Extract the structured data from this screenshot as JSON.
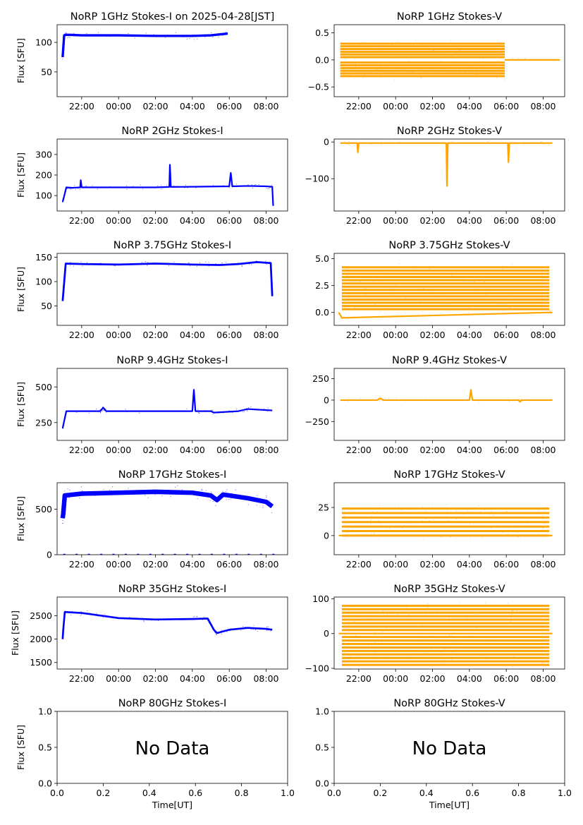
{
  "figure": {
    "xlabel_bottom": "Time[UT]",
    "ylabel": "Flux [SFU]",
    "time_ticks": [
      "22:00",
      "00:00",
      "02:00",
      "04:00",
      "06:00",
      "08:00"
    ],
    "colors": {
      "stokes_i": "#0000ff",
      "stokes_v": "#ffa500",
      "axis": "#000000",
      "background": "#ffffff"
    }
  },
  "chart_data": [
    {
      "type": "scatter",
      "title": "NoRP 1GHz Stokes-I on 2025-04-28[JST]",
      "ylabel": "Flux [SFU]",
      "xlim": [
        "20:40",
        "09:10"
      ],
      "ylim": [
        8,
        130
      ],
      "yticks": [
        50,
        100
      ],
      "color": "#0000ff",
      "series": [
        {
          "x": [
            "20:58",
            "21:00",
            "21:03",
            "21:10",
            "22:00",
            "00:00",
            "02:00",
            "04:00",
            "05:00",
            "05:55"
          ],
          "values": [
            75,
            90,
            112,
            113,
            112,
            112,
            111,
            111,
            112,
            115
          ],
          "spread": 2
        }
      ]
    },
    {
      "type": "scatter",
      "title": "NoRP 1GHz Stokes-V",
      "ylabel": "",
      "xlim": [
        "20:40",
        "09:10"
      ],
      "ylim": [
        -0.68,
        0.65
      ],
      "yticks": [
        -0.5,
        0.0,
        0.5
      ],
      "color": "#ffa500",
      "bands": {
        "x_start": "21:00",
        "x_end": "05:55",
        "levels": [
          -0.3,
          -0.25,
          -0.2,
          -0.15,
          -0.1,
          -0.05,
          0.05,
          0.1,
          0.15,
          0.2,
          0.25,
          0.3
        ]
      },
      "series": [
        {
          "x": [
            "05:55",
            "08:55"
          ],
          "values": [
            0,
            0
          ]
        }
      ]
    },
    {
      "type": "scatter",
      "title": "NoRP 2GHz Stokes-I",
      "ylabel": "Flux [SFU]",
      "xlim": [
        "20:40",
        "09:10"
      ],
      "ylim": [
        25,
        375
      ],
      "yticks": [
        100,
        200,
        300
      ],
      "color": "#0000ff",
      "series": [
        {
          "x": [
            "20:58",
            "21:00",
            "21:10",
            "21:30",
            "21:55",
            "21:57",
            "22:00",
            "00:00",
            "02:00",
            "02:45",
            "02:47",
            "02:50",
            "04:00",
            "06:00",
            "06:05",
            "06:10",
            "07:00",
            "08:00",
            "08:20",
            "08:23"
          ],
          "values": [
            70,
            80,
            140,
            138,
            140,
            175,
            140,
            140,
            140,
            142,
            250,
            142,
            143,
            145,
            210,
            145,
            147,
            145,
            143,
            50
          ],
          "spread": 3
        }
      ]
    },
    {
      "type": "scatter",
      "title": "NoRP 2GHz Stokes-V",
      "ylabel": "",
      "xlim": [
        "20:40",
        "09:10"
      ],
      "ylim": [
        -188,
        8
      ],
      "yticks": [
        -100,
        0
      ],
      "color": "#ffa500",
      "series": [
        {
          "x": [
            "21:00",
            "21:55",
            "21:57",
            "22:00",
            "02:45",
            "02:47",
            "02:50",
            "06:05",
            "06:07",
            "06:10",
            "08:30"
          ],
          "values": [
            -3,
            -3,
            -28,
            -3,
            -3,
            -120,
            -3,
            -3,
            -55,
            -3,
            -3
          ],
          "spread": 2
        }
      ]
    },
    {
      "type": "scatter",
      "title": "NoRP 3.75GHz Stokes-I",
      "ylabel": "Flux [SFU]",
      "xlim": [
        "20:40",
        "09:10"
      ],
      "ylim": [
        10,
        158
      ],
      "yticks": [
        50,
        100,
        150
      ],
      "color": "#0000ff",
      "series": [
        {
          "x": [
            "20:58",
            "21:00",
            "21:08",
            "22:00",
            "00:00",
            "02:00",
            "04:00",
            "05:30",
            "06:30",
            "07:30",
            "08:15",
            "08:20"
          ],
          "values": [
            60,
            75,
            137,
            136,
            135,
            137,
            135,
            134,
            136,
            140,
            138,
            70
          ],
          "spread": 2
        }
      ]
    },
    {
      "type": "scatter",
      "title": "NoRP 3.75GHz Stokes-V",
      "ylabel": "",
      "xlim": [
        "20:40",
        "09:10"
      ],
      "ylim": [
        -1.2,
        5.5
      ],
      "yticks": [
        0.0,
        2.5,
        5.0
      ],
      "color": "#ffa500",
      "bands": {
        "x_start": "21:05",
        "x_end": "08:20",
        "levels": [
          0.3,
          0.6,
          0.9,
          1.2,
          1.5,
          1.8,
          2.1,
          2.4,
          2.7,
          3.0,
          3.3,
          3.6,
          3.9,
          4.2
        ]
      },
      "series": [
        {
          "x": [
            "20:55",
            "21:05",
            "08:20",
            "08:30"
          ],
          "values": [
            0,
            -0.5,
            0,
            0
          ]
        }
      ]
    },
    {
      "type": "scatter",
      "title": "NoRP 9.4GHz Stokes-I",
      "ylabel": "Flux [SFU]",
      "xlim": [
        "20:40",
        "09:10"
      ],
      "ylim": [
        125,
        630
      ],
      "yticks": [
        250,
        500
      ],
      "color": "#0000ff",
      "series": [
        {
          "x": [
            "20:58",
            "21:00",
            "21:10",
            "23:00",
            "23:10",
            "23:20",
            "04:00",
            "04:05",
            "04:10",
            "05:00",
            "05:10",
            "06:30",
            "07:00",
            "08:20"
          ],
          "values": [
            210,
            230,
            330,
            330,
            355,
            330,
            330,
            480,
            330,
            330,
            320,
            330,
            345,
            335
          ],
          "spread": 4
        }
      ]
    },
    {
      "type": "scatter",
      "title": "NoRP 9.4GHz Stokes-V",
      "ylabel": "",
      "xlim": [
        "20:40",
        "09:10"
      ],
      "ylim": [
        -470,
        370
      ],
      "yticks": [
        -250,
        0,
        250
      ],
      "color": "#ffa500",
      "series": [
        {
          "x": [
            "21:00",
            "23:00",
            "23:10",
            "23:20",
            "04:00",
            "04:05",
            "04:10",
            "06:40",
            "06:45",
            "06:50",
            "08:30"
          ],
          "values": [
            0,
            0,
            20,
            0,
            0,
            120,
            0,
            0,
            -20,
            0,
            0
          ],
          "spread": 3
        }
      ]
    },
    {
      "type": "scatter",
      "title": "NoRP 17GHz Stokes-I",
      "ylabel": "Flux [SFU]",
      "xlim": [
        "20:40",
        "09:10"
      ],
      "ylim": [
        0,
        790
      ],
      "yticks": [
        0,
        500
      ],
      "color": "#0000ff",
      "series": [
        {
          "x": [
            "20:58",
            "21:00",
            "21:05",
            "22:00",
            "00:00",
            "02:00",
            "04:00",
            "05:00",
            "05:20",
            "05:40",
            "06:00",
            "07:00",
            "08:00",
            "08:20"
          ],
          "values": [
            400,
            450,
            650,
            670,
            680,
            690,
            680,
            650,
            600,
            660,
            650,
            620,
            580,
            530
          ],
          "spread": 25
        }
      ]
    },
    {
      "type": "scatter",
      "title": "NoRP 17GHz Stokes-V",
      "ylabel": "",
      "xlim": [
        "20:40",
        "09:10"
      ],
      "ylim": [
        -17,
        47
      ],
      "yticks": [
        0,
        25
      ],
      "color": "#ffa500",
      "bands": {
        "x_start": "21:05",
        "x_end": "08:20",
        "levels": [
          0,
          4,
          8,
          12,
          16,
          20,
          24
        ]
      },
      "series": [
        {
          "x": [
            "20:55",
            "08:30"
          ],
          "values": [
            0,
            0
          ]
        }
      ]
    },
    {
      "type": "scatter",
      "title": "NoRP 35GHz Stokes-I",
      "ylabel": "Flux [SFU]",
      "xlim": [
        "20:40",
        "09:10"
      ],
      "ylim": [
        1360,
        2900
      ],
      "yticks": [
        1500,
        2000,
        2500
      ],
      "color": "#0000ff",
      "series": [
        {
          "x": [
            "20:58",
            "21:00",
            "21:05",
            "22:00",
            "00:00",
            "02:00",
            "04:00",
            "04:50",
            "05:10",
            "05:20",
            "06:00",
            "07:00",
            "08:00",
            "08:20"
          ],
          "values": [
            2000,
            2200,
            2580,
            2560,
            2450,
            2420,
            2430,
            2440,
            2200,
            2130,
            2200,
            2240,
            2220,
            2200
          ],
          "spread": 20
        }
      ]
    },
    {
      "type": "scatter",
      "title": "NoRP 35GHz Stokes-V",
      "ylabel": "",
      "xlim": [
        "20:40",
        "09:10"
      ],
      "ylim": [
        -102,
        105
      ],
      "yticks": [
        -100,
        0,
        100
      ],
      "color": "#ffa500",
      "bands": {
        "x_start": "21:05",
        "x_end": "08:20",
        "levels": [
          -90,
          -80,
          -70,
          -60,
          -50,
          -40,
          -30,
          -20,
          -10,
          10,
          20,
          30,
          40,
          50,
          60,
          70,
          80
        ]
      },
      "series": [
        {
          "x": [
            "20:55",
            "08:30"
          ],
          "values": [
            0,
            0
          ]
        }
      ]
    },
    {
      "type": "empty",
      "title": "NoRP 80GHz Stokes-I",
      "ylabel": "Flux [SFU]",
      "xlabel": "Time[UT]",
      "annotation": "No Data",
      "xlim": [
        0,
        1
      ],
      "ylim": [
        0,
        1
      ],
      "xticks": [
        0.0,
        0.2,
        0.4,
        0.6,
        0.8,
        1.0
      ],
      "yticks": [
        0.0,
        0.5,
        1.0
      ]
    },
    {
      "type": "empty",
      "title": "NoRP 80GHz Stokes-V",
      "ylabel": "",
      "xlabel": "Time[UT]",
      "annotation": "No Data",
      "xlim": [
        0,
        1
      ],
      "ylim": [
        0,
        1
      ],
      "xticks": [
        0.0,
        0.2,
        0.4,
        0.6,
        0.8,
        1.0
      ],
      "yticks": [
        0.0,
        0.5,
        1.0
      ]
    }
  ]
}
